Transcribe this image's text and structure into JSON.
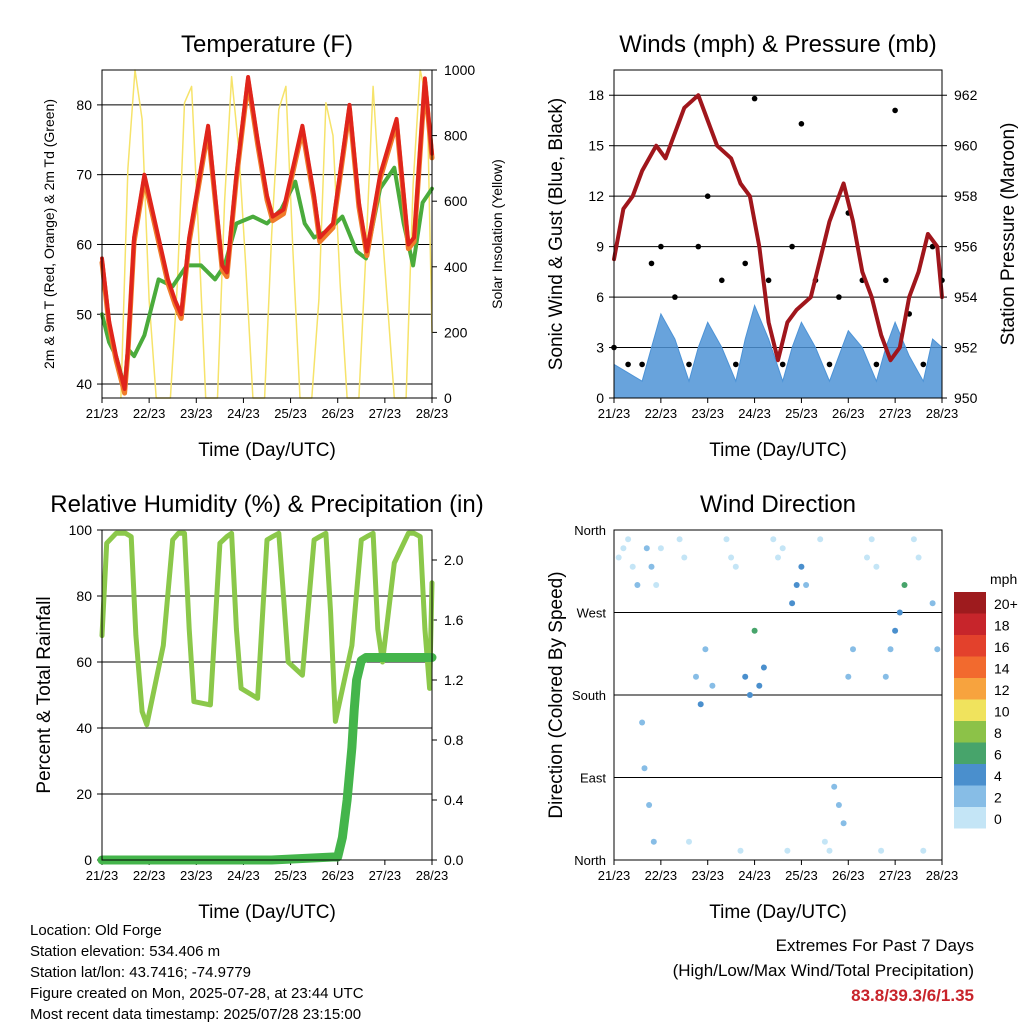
{
  "footer": {
    "location": "Location: Old Forge",
    "elevation": "Station elevation: 534.406 m",
    "latlon": "Station lat/lon: 43.7416; -74.9779",
    "created": "Figure created on Mon, 2025-07-28, at 23:44 UTC",
    "recent": "Most recent data timestamp: 2025/07/28 23:15:00",
    "extremes_title": "Extremes For Past 7 Days",
    "extremes_sub": "(High/Low/Max Wind/Total Precipitation)",
    "extremes_value": "83.8/39.3/6/1.35"
  },
  "chart_data": [
    {
      "id": "temperature",
      "type": "line",
      "title": "Temperature (F)",
      "xlabel": "Time (Day/UTC)",
      "ylabel": "2m & 9m T (Red, Orange) & 2m Td (Green)",
      "ylabel_right": "Solar Insolation (Yellow)",
      "x_ticks": [
        "21/23",
        "22/23",
        "23/23",
        "24/23",
        "25/23",
        "26/23",
        "27/23",
        "28/23"
      ],
      "x_range": [
        0,
        7
      ],
      "ylim": [
        38,
        85
      ],
      "yticks": [
        40,
        50,
        60,
        70,
        80
      ],
      "ylim_right": [
        0,
        1000
      ],
      "yticks_right": [
        0,
        200,
        400,
        600,
        800,
        1000
      ],
      "colors": {
        "t2m": "#e0251c",
        "t9m": "#f07b2a",
        "td": "#4aab3c",
        "solar": "#f6e36a"
      },
      "series": [
        {
          "name": "2m T",
          "axis": "left",
          "x": [
            0,
            0.15,
            0.3,
            0.48,
            0.55,
            0.68,
            0.9,
            1.4,
            1.55,
            1.68,
            1.85,
            2.25,
            2.55,
            2.65,
            2.85,
            3.1,
            3.3,
            3.5,
            3.62,
            3.85,
            4.25,
            4.5,
            4.62,
            4.9,
            5.25,
            5.45,
            5.62,
            5.9,
            6.25,
            6.5,
            6.62,
            6.85,
            7.0
          ],
          "y": [
            58,
            49,
            44,
            39.3,
            45,
            61,
            70,
            55,
            52,
            50,
            61,
            77,
            57,
            56,
            70,
            84,
            75,
            67,
            64,
            65,
            77,
            67,
            61,
            63,
            80,
            66,
            59,
            70,
            78,
            60,
            61,
            83.8,
            73
          ]
        },
        {
          "name": "Td",
          "axis": "left",
          "x": [
            0,
            0.15,
            0.3,
            0.48,
            0.55,
            0.68,
            0.9,
            1.2,
            1.5,
            1.8,
            2.1,
            2.4,
            2.6,
            2.85,
            3.2,
            3.5,
            3.8,
            4.1,
            4.3,
            4.5,
            4.8,
            5.1,
            5.4,
            5.6,
            5.9,
            6.2,
            6.4,
            6.6,
            6.8,
            7.0
          ],
          "y": [
            50,
            46,
            44,
            39.5,
            45,
            44,
            47,
            55,
            54,
            57,
            57,
            55,
            57,
            63,
            64,
            63,
            65,
            69,
            63,
            61,
            62,
            64,
            59,
            58,
            68,
            71,
            63,
            57,
            66,
            68
          ]
        },
        {
          "name": "Solar",
          "axis": "right",
          "x": [
            0.4,
            0.55,
            0.7,
            0.85,
            1.0,
            1.15,
            1.45,
            1.6,
            1.75,
            1.9,
            2.05,
            2.2,
            2.45,
            2.6,
            2.75,
            2.9,
            3.05,
            3.2,
            3.45,
            3.6,
            3.75,
            3.9,
            4.05,
            4.2,
            4.45,
            4.6,
            4.75,
            4.9,
            5.05,
            5.2,
            5.45,
            5.6,
            5.75,
            5.9,
            6.05,
            6.2,
            6.45,
            6.6,
            6.75,
            6.9,
            7.0
          ],
          "y": [
            0,
            700,
            1000,
            850,
            300,
            0,
            0,
            350,
            900,
            950,
            500,
            0,
            0,
            600,
            980,
            760,
            400,
            0,
            0,
            500,
            880,
            950,
            450,
            0,
            0,
            300,
            900,
            800,
            350,
            0,
            0,
            450,
            950,
            600,
            300,
            0,
            0,
            650,
            1000,
            900,
            200
          ]
        }
      ]
    },
    {
      "id": "winds",
      "type": "scatter",
      "title": "Winds (mph) & Pressure (mb)",
      "xlabel": "Time (Day/UTC)",
      "ylabel": "Sonic Wind & Gust (Blue, Black)",
      "ylabel_right": "Station Pressure (Maroon)",
      "x_ticks": [
        "21/23",
        "22/23",
        "23/23",
        "24/23",
        "25/23",
        "26/23",
        "27/23",
        "28/23"
      ],
      "x_range": [
        0,
        7
      ],
      "ylim": [
        0,
        19.5
      ],
      "yticks": [
        0,
        3,
        6,
        9,
        12,
        15,
        18
      ],
      "ylim_right": [
        950,
        963
      ],
      "yticks_right": [
        950,
        952,
        954,
        956,
        958,
        960,
        962
      ],
      "colors": {
        "wind": "#4d93d6",
        "gust": "#000000",
        "pressure": "#a0161c"
      },
      "series": [
        {
          "name": "Wind",
          "axis": "left",
          "x": [
            0,
            0.3,
            0.6,
            0.8,
            1.0,
            1.3,
            1.6,
            1.8,
            2.0,
            2.3,
            2.6,
            2.8,
            3.0,
            3.3,
            3.6,
            3.8,
            4.0,
            4.3,
            4.6,
            4.8,
            5.0,
            5.3,
            5.6,
            5.8,
            6.0,
            6.3,
            6.6,
            6.8,
            7.0
          ],
          "y": [
            2,
            1.5,
            1,
            3,
            5,
            3.5,
            1,
            3,
            4.5,
            3,
            1,
            3.5,
            5.5,
            3.5,
            1,
            3,
            4.5,
            3,
            1,
            2.5,
            4,
            3,
            1,
            3,
            4.5,
            2.5,
            1,
            3.5,
            3
          ]
        },
        {
          "name": "Gust",
          "axis": "left",
          "x": [
            0,
            0.3,
            0.6,
            0.8,
            1.0,
            1.3,
            1.6,
            1.8,
            2.0,
            2.3,
            2.6,
            2.8,
            3.0,
            3.3,
            3.6,
            3.8,
            4.0,
            4.3,
            4.6,
            4.8,
            5.0,
            5.3,
            5.6,
            5.8,
            6.0,
            6.3,
            6.6,
            6.8,
            7.0
          ],
          "y": [
            3,
            2,
            2,
            8,
            9,
            6,
            2,
            9,
            12,
            7,
            2,
            8,
            17.8,
            7,
            2,
            9,
            16.3,
            7,
            2,
            6,
            11,
            7,
            2,
            7,
            17.1,
            5,
            2,
            9,
            7
          ]
        },
        {
          "name": "Pressure",
          "axis": "right",
          "x": [
            0,
            0.2,
            0.4,
            0.6,
            0.9,
            1.1,
            1.3,
            1.5,
            1.8,
            2.0,
            2.2,
            2.5,
            2.7,
            2.9,
            3.1,
            3.3,
            3.5,
            3.7,
            3.9,
            4.2,
            4.4,
            4.6,
            4.9,
            5.1,
            5.3,
            5.5,
            5.7,
            5.9,
            6.1,
            6.3,
            6.5,
            6.7,
            6.9,
            7.0
          ],
          "y": [
            955.5,
            957.5,
            958,
            959,
            960,
            959.5,
            960.5,
            961.5,
            962,
            961,
            960,
            959.5,
            958.5,
            958,
            956,
            953,
            951.5,
            953,
            953.5,
            954,
            955.5,
            957,
            958.5,
            957,
            955,
            954,
            952.5,
            951.5,
            952,
            954,
            955,
            956.5,
            956,
            954
          ]
        }
      ]
    },
    {
      "id": "humidity",
      "type": "line",
      "title": "Relative Humidity (%) & Precipitation (in)",
      "xlabel": "Time (Day/UTC)",
      "ylabel": "Percent & Total Rainfall",
      "x_ticks": [
        "21/23",
        "22/23",
        "23/23",
        "24/23",
        "25/23",
        "26/23",
        "27/23",
        "28/23"
      ],
      "x_range": [
        0,
        7
      ],
      "ylim": [
        0,
        100
      ],
      "yticks": [
        0,
        20,
        40,
        60,
        80,
        100
      ],
      "ylim_right": [
        0,
        2.2
      ],
      "yticks_right": [
        0.0,
        0.4,
        0.8,
        1.2,
        1.6,
        2.0
      ],
      "colors": {
        "rh": "#8bc84a",
        "precip": "#44b54b"
      },
      "series": [
        {
          "name": "RH",
          "axis": "left",
          "x": [
            0,
            0.1,
            0.3,
            0.5,
            0.62,
            0.72,
            0.85,
            0.95,
            1.3,
            1.5,
            1.62,
            1.75,
            1.85,
            1.95,
            2.3,
            2.5,
            2.65,
            2.75,
            2.85,
            2.95,
            3.3,
            3.5,
            3.62,
            3.75,
            3.85,
            3.95,
            4.25,
            4.5,
            4.62,
            4.75,
            4.85,
            4.95,
            5.3,
            5.5,
            5.62,
            5.75,
            5.85,
            5.95,
            6.2,
            6.5,
            6.62,
            6.75,
            6.85,
            6.95,
            7.0
          ],
          "y": [
            68,
            96,
            99,
            99,
            98,
            68,
            45,
            41,
            65,
            97,
            99,
            99,
            70,
            48,
            47,
            96,
            98,
            99,
            70,
            52,
            49,
            97,
            98,
            99,
            80,
            60,
            56,
            97,
            98,
            99,
            75,
            42,
            65,
            97,
            98,
            99,
            70,
            60,
            90,
            99,
            99,
            98,
            70,
            52,
            84
          ]
        },
        {
          "name": "Precipitation",
          "axis": "right",
          "x": [
            0,
            3.6,
            4.9,
            5.0,
            5.1,
            5.2,
            5.3,
            5.35,
            5.4,
            5.5,
            5.6,
            7.0
          ],
          "y": [
            0,
            0,
            0.02,
            0.02,
            0.15,
            0.4,
            0.75,
            1.0,
            1.2,
            1.33,
            1.35,
            1.35
          ]
        }
      ]
    },
    {
      "id": "direction",
      "type": "scatter",
      "title": "Wind Direction",
      "xlabel": "Time (Day/UTC)",
      "ylabel": "Direction (Colored By Speed)",
      "x_ticks": [
        "21/23",
        "22/23",
        "23/23",
        "24/23",
        "25/23",
        "26/23",
        "27/23",
        "28/23"
      ],
      "x_range": [
        0,
        7
      ],
      "ylim": [
        0,
        360
      ],
      "ytick_labels": [
        "North",
        "East",
        "South",
        "West",
        "North"
      ],
      "legend_title": "mph",
      "legend_labels": [
        "20+",
        "18",
        "16",
        "14",
        "12",
        "10",
        "8",
        "6",
        "4",
        "2",
        "0"
      ],
      "legend_colors": [
        "#9e1b1e",
        "#c7252b",
        "#e3412c",
        "#f26a2e",
        "#f7a33e",
        "#f0e35d",
        "#8cc248",
        "#47a46b",
        "#4a8fcd",
        "#87bde6",
        "#c4e5f6"
      ],
      "series": [
        {
          "name": "Direction",
          "axis": "left",
          "x": [
            0.1,
            0.2,
            0.3,
            0.4,
            0.5,
            0.7,
            0.8,
            0.9,
            1.0,
            0.6,
            0.65,
            0.75,
            0.85,
            1.4,
            1.5,
            1.6,
            1.75,
            1.85,
            1.95,
            2.1,
            2.4,
            2.5,
            2.6,
            2.7,
            2.8,
            2.9,
            3.0,
            3.1,
            3.2,
            3.4,
            3.5,
            3.6,
            3.7,
            3.8,
            3.9,
            4.0,
            4.1,
            4.4,
            4.5,
            4.6,
            4.7,
            4.8,
            4.9,
            5.0,
            5.1,
            5.4,
            5.5,
            5.6,
            5.7,
            5.8,
            5.9,
            6.0,
            6.1,
            6.2,
            6.4,
            6.5,
            6.6,
            6.8,
            6.9
          ],
          "y": [
            330,
            340,
            350,
            320,
            300,
            340,
            320,
            300,
            340,
            150,
            100,
            60,
            20,
            350,
            330,
            20,
            200,
            170,
            230,
            190,
            350,
            330,
            320,
            10,
            200,
            180,
            250,
            190,
            210,
            350,
            330,
            340,
            10,
            280,
            300,
            320,
            300,
            350,
            20,
            10,
            80,
            60,
            40,
            200,
            230,
            330,
            350,
            320,
            10,
            200,
            230,
            250,
            270,
            300,
            350,
            330,
            10,
            280,
            230
          ],
          "speed": [
            1,
            1,
            0.5,
            1,
            2,
            3,
            2,
            1,
            1,
            2,
            3,
            3,
            2,
            0.5,
            1,
            0.5,
            3,
            4,
            3,
            3,
            0.5,
            1,
            1,
            0.5,
            4,
            4,
            6,
            5,
            4,
            0.5,
            1,
            1,
            0.5,
            4,
            5,
            4,
            3,
            0.5,
            1,
            0.5,
            3,
            3,
            2,
            2,
            3,
            1,
            1,
            1,
            0.5,
            3,
            3,
            4,
            5,
            6,
            1,
            1,
            0.5,
            3,
            2
          ]
        }
      ]
    }
  ]
}
